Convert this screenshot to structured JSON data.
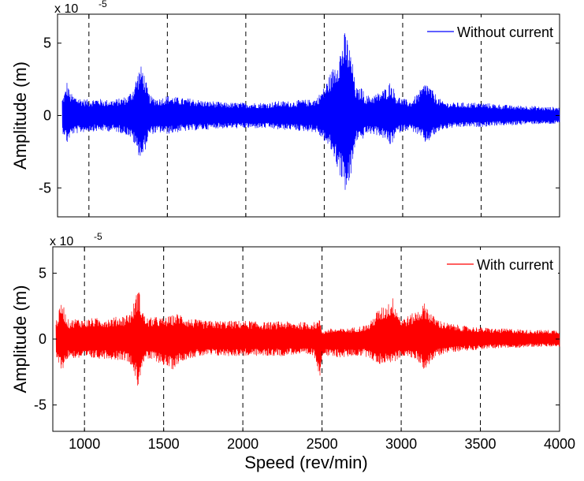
{
  "chart_data": [
    {
      "type": "line",
      "ylabel": "Amplitude (m)",
      "y_multiplier": "x 10",
      "y_exponent": "-5",
      "xlim": [
        800,
        4000
      ],
      "ylim": [
        -7,
        7
      ],
      "xticks": [
        1000,
        1500,
        2000,
        2500,
        3000,
        3500
      ],
      "yticks": [
        -5,
        0,
        5
      ],
      "grid": "vertical dashed at x ticks",
      "legend_position": "top-right",
      "series": [
        {
          "name": "Without current",
          "color": "#0000ff",
          "envelope": [
            [
              830,
              1.2
            ],
            [
              850,
              1.8
            ],
            [
              860,
              2.4
            ],
            [
              880,
              1.6
            ],
            [
              900,
              1.4
            ],
            [
              950,
              1.2
            ],
            [
              1000,
              1.1
            ],
            [
              1050,
              1.2
            ],
            [
              1100,
              1.1
            ],
            [
              1150,
              1.1
            ],
            [
              1200,
              1.2
            ],
            [
              1250,
              1.4
            ],
            [
              1280,
              1.9
            ],
            [
              1300,
              2.6
            ],
            [
              1320,
              3.3
            ],
            [
              1340,
              3.5
            ],
            [
              1360,
              2.6
            ],
            [
              1380,
              1.6
            ],
            [
              1400,
              1.3
            ],
            [
              1450,
              1.2
            ],
            [
              1500,
              1.4
            ],
            [
              1550,
              1.3
            ],
            [
              1600,
              1.2
            ],
            [
              1650,
              1.2
            ],
            [
              1700,
              1.1
            ],
            [
              1750,
              1.0
            ],
            [
              1800,
              1.0
            ],
            [
              1850,
              0.9
            ],
            [
              1900,
              0.9
            ],
            [
              1950,
              0.9
            ],
            [
              2000,
              0.9
            ],
            [
              2050,
              0.9
            ],
            [
              2100,
              0.9
            ],
            [
              2150,
              0.9
            ],
            [
              2200,
              1.0
            ],
            [
              2250,
              1.0
            ],
            [
              2300,
              1.0
            ],
            [
              2350,
              1.1
            ],
            [
              2400,
              1.1
            ],
            [
              2450,
              1.2
            ],
            [
              2500,
              2.0
            ],
            [
              2550,
              3.2
            ],
            [
              2600,
              4.6
            ],
            [
              2630,
              5.8
            ],
            [
              2650,
              5.4
            ],
            [
              2680,
              3.8
            ],
            [
              2700,
              2.0
            ],
            [
              2720,
              1.8
            ],
            [
              2740,
              2.0
            ],
            [
              2760,
              1.4
            ],
            [
              2800,
              1.4
            ],
            [
              2850,
              1.6
            ],
            [
              2900,
              2.0
            ],
            [
              2920,
              2.4
            ],
            [
              2940,
              2.0
            ],
            [
              2960,
              1.4
            ],
            [
              3000,
              1.2
            ],
            [
              3050,
              1.0
            ],
            [
              3100,
              1.6
            ],
            [
              3150,
              2.4
            ],
            [
              3200,
              1.6
            ],
            [
              3250,
              1.0
            ],
            [
              3300,
              0.9
            ],
            [
              3400,
              0.9
            ],
            [
              3500,
              0.9
            ],
            [
              3600,
              0.8
            ],
            [
              3700,
              0.7
            ],
            [
              3800,
              0.7
            ],
            [
              3900,
              0.6
            ],
            [
              4000,
              0.6
            ]
          ],
          "envelope_lower": [
            [
              830,
              -1.2
            ],
            [
              850,
              -1.5
            ],
            [
              860,
              -2.0
            ],
            [
              880,
              -1.5
            ],
            [
              900,
              -1.3
            ],
            [
              950,
              -1.2
            ],
            [
              1000,
              -1.1
            ],
            [
              1050,
              -1.1
            ],
            [
              1100,
              -1.1
            ],
            [
              1150,
              -1.1
            ],
            [
              1200,
              -1.2
            ],
            [
              1250,
              -1.4
            ],
            [
              1280,
              -1.8
            ],
            [
              1300,
              -2.4
            ],
            [
              1320,
              -2.8
            ],
            [
              1340,
              -3.0
            ],
            [
              1360,
              -2.4
            ],
            [
              1380,
              -1.5
            ],
            [
              1400,
              -1.3
            ],
            [
              1450,
              -1.2
            ],
            [
              1500,
              -1.3
            ],
            [
              1550,
              -1.2
            ],
            [
              1600,
              -1.1
            ],
            [
              1650,
              -1.1
            ],
            [
              1700,
              -1.0
            ],
            [
              1750,
              -1.0
            ],
            [
              1800,
              -0.9
            ],
            [
              1850,
              -0.9
            ],
            [
              1900,
              -0.9
            ],
            [
              1950,
              -0.9
            ],
            [
              2000,
              -0.9
            ],
            [
              2050,
              -0.9
            ],
            [
              2100,
              -0.9
            ],
            [
              2150,
              -0.9
            ],
            [
              2200,
              -1.0
            ],
            [
              2250,
              -1.0
            ],
            [
              2300,
              -1.0
            ],
            [
              2350,
              -1.1
            ],
            [
              2400,
              -1.1
            ],
            [
              2450,
              -1.2
            ],
            [
              2500,
              -1.8
            ],
            [
              2550,
              -2.6
            ],
            [
              2600,
              -4.2
            ],
            [
              2630,
              -5.2
            ],
            [
              2650,
              -5.6
            ],
            [
              2680,
              -3.6
            ],
            [
              2700,
              -1.9
            ],
            [
              2720,
              -1.6
            ],
            [
              2740,
              -1.8
            ],
            [
              2760,
              -1.3
            ],
            [
              2800,
              -1.3
            ],
            [
              2850,
              -1.4
            ],
            [
              2900,
              -1.8
            ],
            [
              2920,
              -2.2
            ],
            [
              2940,
              -1.8
            ],
            [
              2960,
              -1.3
            ],
            [
              3000,
              -1.1
            ],
            [
              3050,
              -1.0
            ],
            [
              3100,
              -1.4
            ],
            [
              3150,
              -2.0
            ],
            [
              3200,
              -1.4
            ],
            [
              3250,
              -1.0
            ],
            [
              3300,
              -0.9
            ],
            [
              3400,
              -0.8
            ],
            [
              3500,
              -0.8
            ],
            [
              3600,
              -0.7
            ],
            [
              3700,
              -0.7
            ],
            [
              3800,
              -0.6
            ],
            [
              3900,
              -0.6
            ],
            [
              4000,
              -0.6
            ]
          ]
        }
      ]
    },
    {
      "type": "line",
      "ylabel": "Amplitude (m)",
      "xlabel": "Speed (rev/min)",
      "y_multiplier": "x 10",
      "y_exponent": "-5",
      "xlim": [
        800,
        4000
      ],
      "ylim": [
        -7,
        7
      ],
      "xticks": [
        1000,
        1500,
        2000,
        2500,
        3000,
        3500,
        4000
      ],
      "yticks": [
        -5,
        0,
        5
      ],
      "grid": "vertical dashed at x ticks",
      "legend_position": "top-right",
      "series": [
        {
          "name": "With current",
          "color": "#ff0000",
          "envelope": [
            [
              820,
              1.4
            ],
            [
              840,
              2.2
            ],
            [
              860,
              3.0
            ],
            [
              880,
              2.0
            ],
            [
              900,
              1.4
            ],
            [
              950,
              1.6
            ],
            [
              1000,
              1.5
            ],
            [
              1050,
              1.6
            ],
            [
              1100,
              1.6
            ],
            [
              1150,
              1.6
            ],
            [
              1200,
              1.7
            ],
            [
              1250,
              1.8
            ],
            [
              1300,
              2.2
            ],
            [
              1320,
              3.2
            ],
            [
              1340,
              4.0
            ],
            [
              1360,
              2.6
            ],
            [
              1380,
              1.8
            ],
            [
              1400,
              1.6
            ],
            [
              1450,
              1.7
            ],
            [
              1500,
              1.6
            ],
            [
              1550,
              1.8
            ],
            [
              1600,
              2.0
            ],
            [
              1650,
              1.6
            ],
            [
              1700,
              1.5
            ],
            [
              1750,
              1.4
            ],
            [
              1800,
              1.4
            ],
            [
              1850,
              1.4
            ],
            [
              1900,
              1.4
            ],
            [
              1950,
              1.4
            ],
            [
              2000,
              1.4
            ],
            [
              2050,
              1.4
            ],
            [
              2100,
              1.3
            ],
            [
              2150,
              1.3
            ],
            [
              2200,
              1.3
            ],
            [
              2250,
              1.4
            ],
            [
              2300,
              1.3
            ],
            [
              2350,
              1.3
            ],
            [
              2400,
              1.3
            ],
            [
              2450,
              1.3
            ],
            [
              2490,
              1.5
            ],
            [
              2500,
              0.6
            ],
            [
              2550,
              0.8
            ],
            [
              2600,
              0.8
            ],
            [
              2650,
              0.8
            ],
            [
              2700,
              0.9
            ],
            [
              2750,
              1.0
            ],
            [
              2800,
              1.2
            ],
            [
              2850,
              2.2
            ],
            [
              2900,
              2.6
            ],
            [
              2950,
              3.2
            ],
            [
              2980,
              2.2
            ],
            [
              3000,
              1.6
            ],
            [
              3050,
              1.8
            ],
            [
              3100,
              2.2
            ],
            [
              3150,
              2.8
            ],
            [
              3200,
              1.8
            ],
            [
              3250,
              1.4
            ],
            [
              3300,
              1.2
            ],
            [
              3400,
              1.0
            ],
            [
              3500,
              0.9
            ],
            [
              3600,
              0.8
            ],
            [
              3700,
              0.8
            ],
            [
              3800,
              0.7
            ],
            [
              3900,
              0.7
            ],
            [
              4000,
              0.7
            ]
          ],
          "envelope_lower": [
            [
              820,
              -1.4
            ],
            [
              840,
              -2.0
            ],
            [
              860,
              -2.4
            ],
            [
              880,
              -1.8
            ],
            [
              900,
              -1.4
            ],
            [
              950,
              -1.5
            ],
            [
              1000,
              -1.5
            ],
            [
              1050,
              -1.5
            ],
            [
              1100,
              -1.5
            ],
            [
              1150,
              -1.5
            ],
            [
              1200,
              -1.6
            ],
            [
              1250,
              -1.6
            ],
            [
              1300,
              -2.0
            ],
            [
              1320,
              -3.0
            ],
            [
              1340,
              -3.8
            ],
            [
              1360,
              -2.2
            ],
            [
              1380,
              -1.7
            ],
            [
              1400,
              -1.6
            ],
            [
              1450,
              -1.7
            ],
            [
              1500,
              -2.0
            ],
            [
              1550,
              -2.4
            ],
            [
              1600,
              -1.8
            ],
            [
              1650,
              -1.5
            ],
            [
              1700,
              -1.4
            ],
            [
              1750,
              -1.3
            ],
            [
              1800,
              -1.3
            ],
            [
              1850,
              -1.3
            ],
            [
              1900,
              -1.3
            ],
            [
              1950,
              -1.3
            ],
            [
              2000,
              -1.3
            ],
            [
              2050,
              -1.3
            ],
            [
              2100,
              -1.3
            ],
            [
              2150,
              -1.3
            ],
            [
              2200,
              -1.3
            ],
            [
              2250,
              -1.3
            ],
            [
              2300,
              -1.2
            ],
            [
              2350,
              -1.2
            ],
            [
              2400,
              -1.3
            ],
            [
              2450,
              -1.3
            ],
            [
              2490,
              -3.0
            ],
            [
              2500,
              -1.2
            ],
            [
              2550,
              -1.4
            ],
            [
              2600,
              -1.4
            ],
            [
              2650,
              -1.4
            ],
            [
              2700,
              -1.3
            ],
            [
              2750,
              -1.3
            ],
            [
              2800,
              -1.4
            ],
            [
              2850,
              -2.0
            ],
            [
              2900,
              -1.8
            ],
            [
              2950,
              -1.8
            ],
            [
              2980,
              -1.6
            ],
            [
              3000,
              -1.3
            ],
            [
              3050,
              -1.4
            ],
            [
              3100,
              -1.6
            ],
            [
              3150,
              -2.4
            ],
            [
              3200,
              -1.6
            ],
            [
              3250,
              -1.2
            ],
            [
              3300,
              -1.0
            ],
            [
              3400,
              -0.9
            ],
            [
              3500,
              -0.8
            ],
            [
              3600,
              -0.7
            ],
            [
              3700,
              -0.7
            ],
            [
              3800,
              -0.6
            ],
            [
              3900,
              -0.6
            ],
            [
              4000,
              -0.6
            ]
          ]
        }
      ]
    }
  ]
}
